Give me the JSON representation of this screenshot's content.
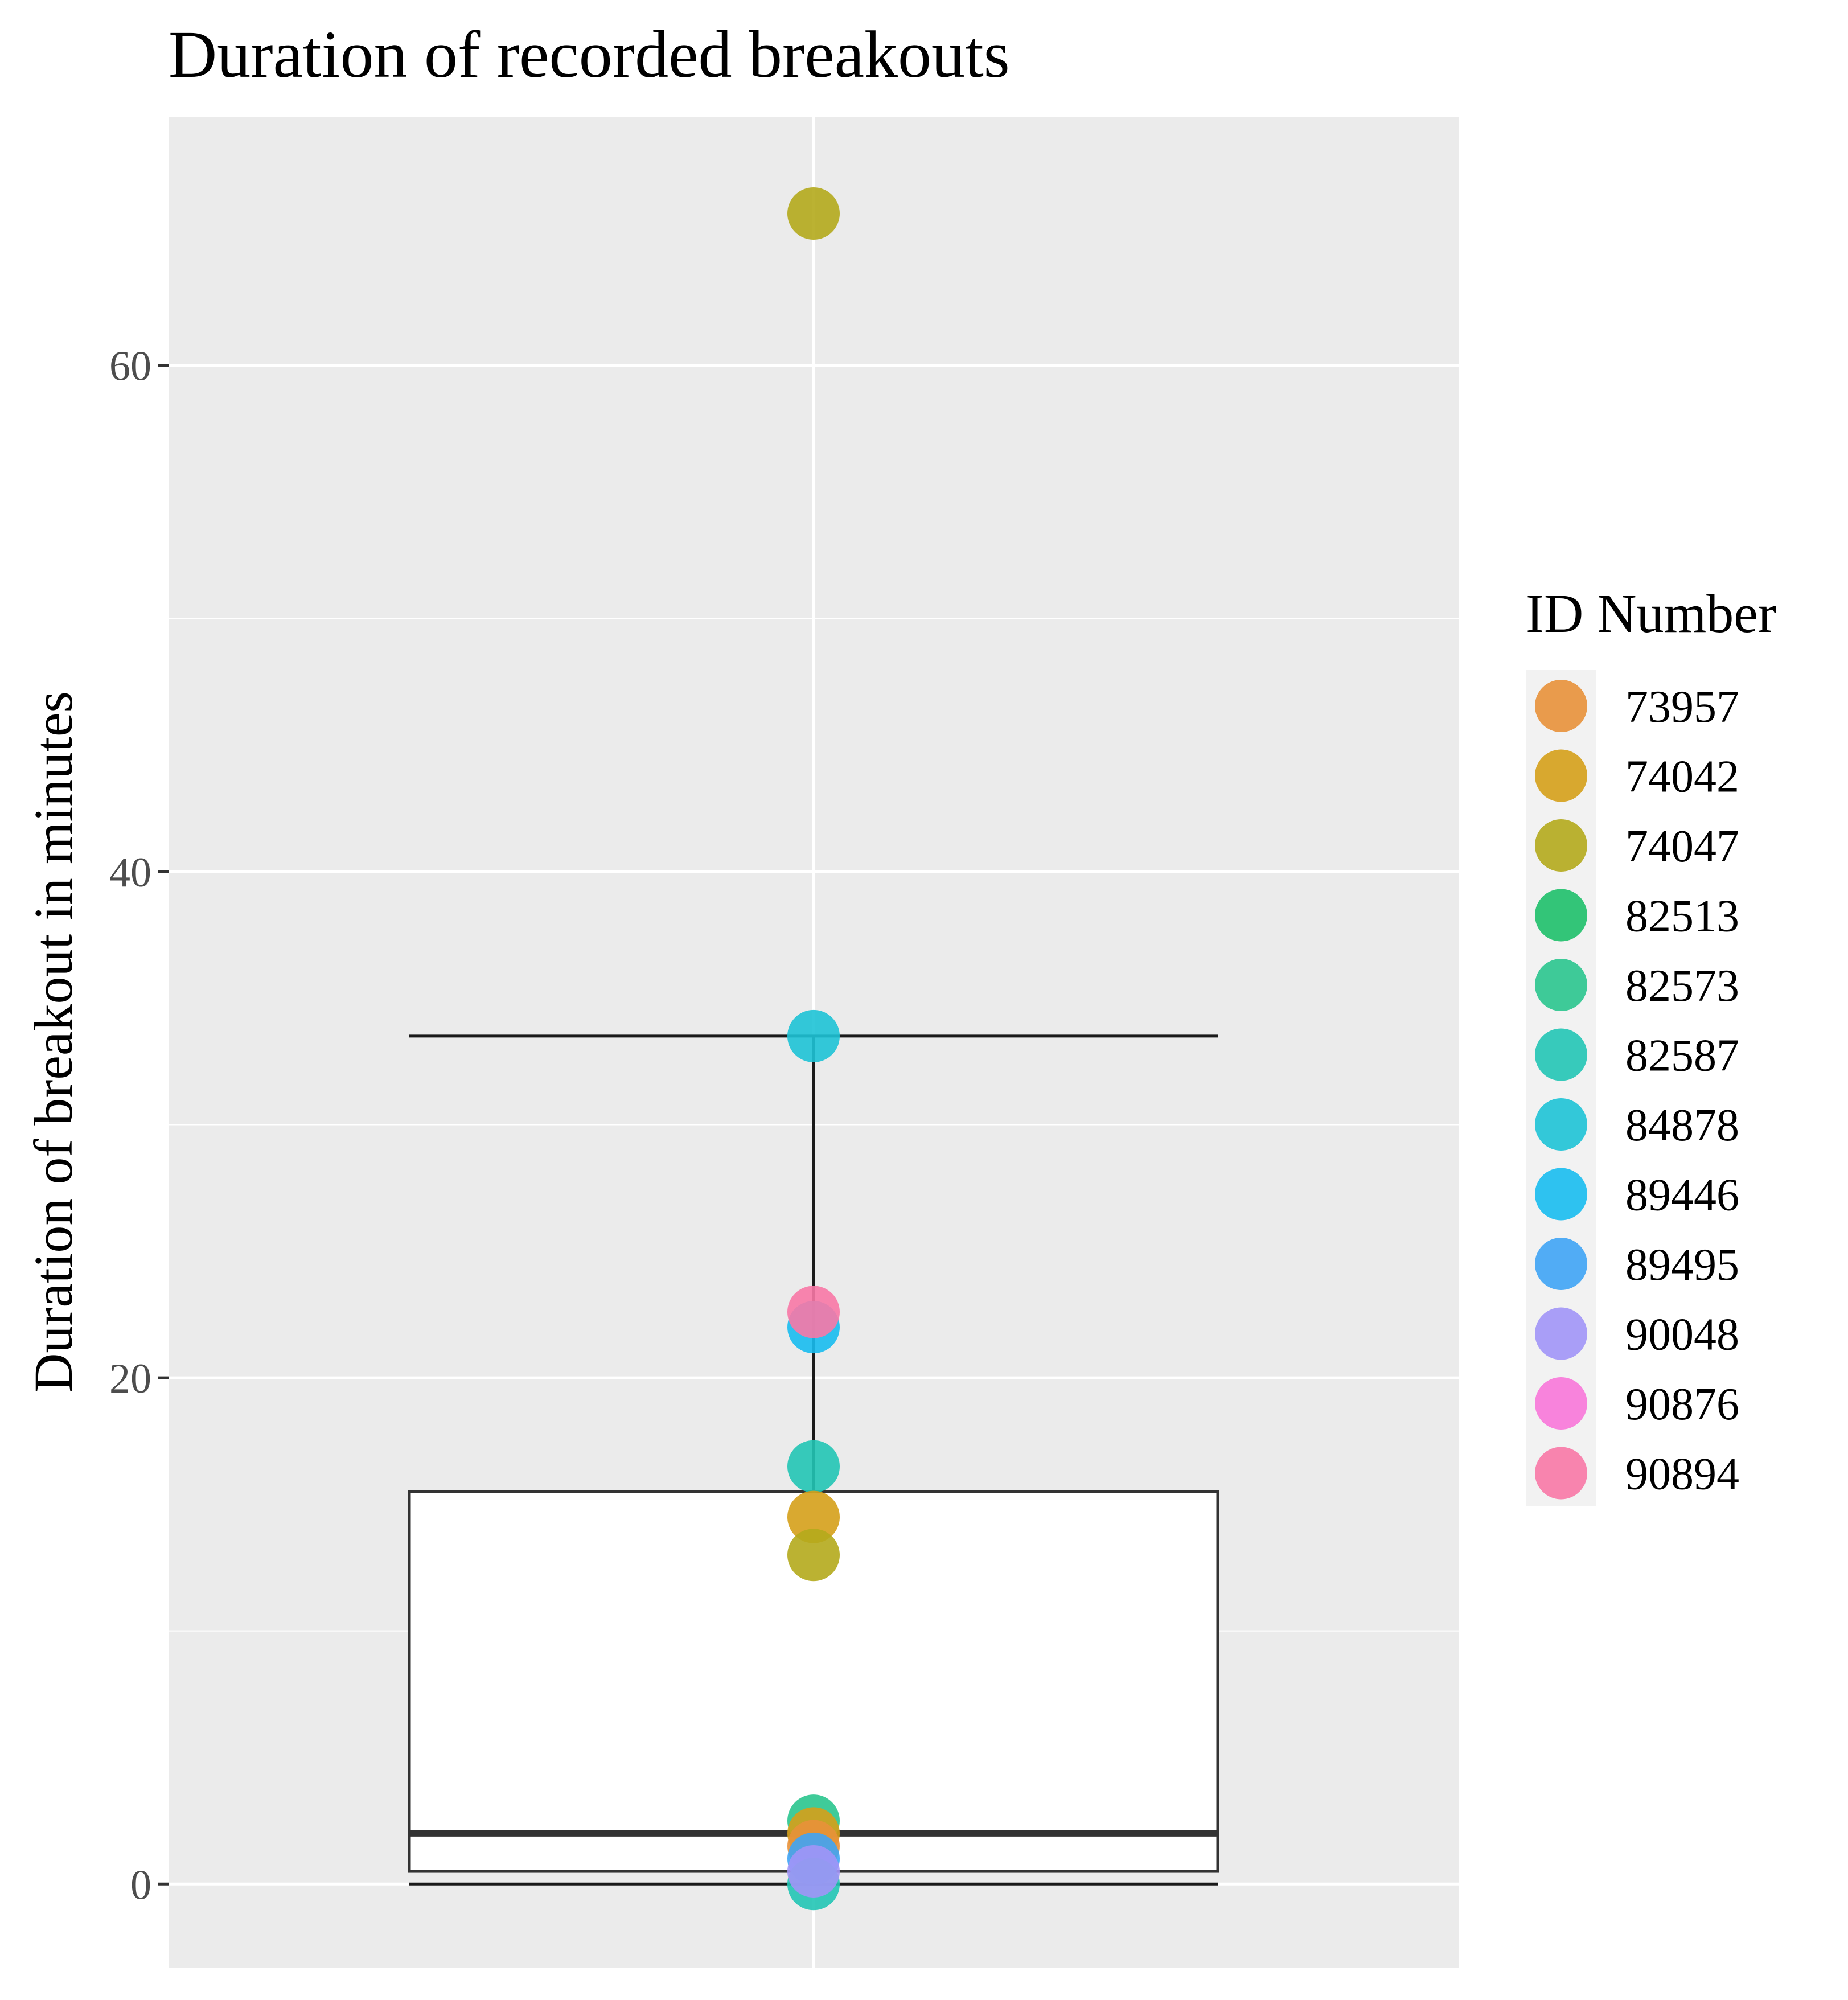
{
  "chart_data": {
    "type": "boxplot",
    "title": "Duration of recorded breakouts",
    "xlabel": "",
    "ylabel": "Duration of breakout in minutes",
    "ylim": [
      -3.3,
      69.8
    ],
    "yticks": [
      0,
      20,
      40,
      60
    ],
    "ytick_labels": [
      "0",
      "20",
      "40",
      "60"
    ],
    "grid": true,
    "legend": {
      "title": "ID Number",
      "position": "right",
      "entries": [
        {
          "id": "73957",
          "color": "#E8913A"
        },
        {
          "id": "74042",
          "color": "#D5A01A"
        },
        {
          "id": "74047",
          "color": "#B4AA1C"
        },
        {
          "id": "82513",
          "color": "#1EC06A"
        },
        {
          "id": "82573",
          "color": "#2AC58E"
        },
        {
          "id": "82587",
          "color": "#22C5B5"
        },
        {
          "id": "84878",
          "color": "#1EC3D6"
        },
        {
          "id": "89446",
          "color": "#18BCEF"
        },
        {
          "id": "89495",
          "color": "#3FA4F5"
        },
        {
          "id": "90048",
          "color": "#A195F7"
        },
        {
          "id": "90876",
          "color": "#F877D9"
        },
        {
          "id": "90894",
          "color": "#F878A6"
        }
      ]
    },
    "box": {
      "whisker_low": 0,
      "q1": 0.5,
      "median": 2,
      "q3": 15.5,
      "whisker_high": 33.5
    },
    "points": [
      {
        "id": "74047",
        "value": 66
      },
      {
        "id": "84878",
        "value": 33.5
      },
      {
        "id": "89446",
        "value": 22
      },
      {
        "id": "90894",
        "value": 22.6
      },
      {
        "id": "82587",
        "value": 16.5
      },
      {
        "id": "74042",
        "value": 14.5
      },
      {
        "id": "74047",
        "value": 13
      },
      {
        "id": "82573",
        "value": 2.5
      },
      {
        "id": "74042",
        "value": 2
      },
      {
        "id": "73957",
        "value": 1.5
      },
      {
        "id": "89495",
        "value": 1
      },
      {
        "id": "82587",
        "value": 0
      },
      {
        "id": "90048",
        "value": 0.5
      }
    ]
  }
}
